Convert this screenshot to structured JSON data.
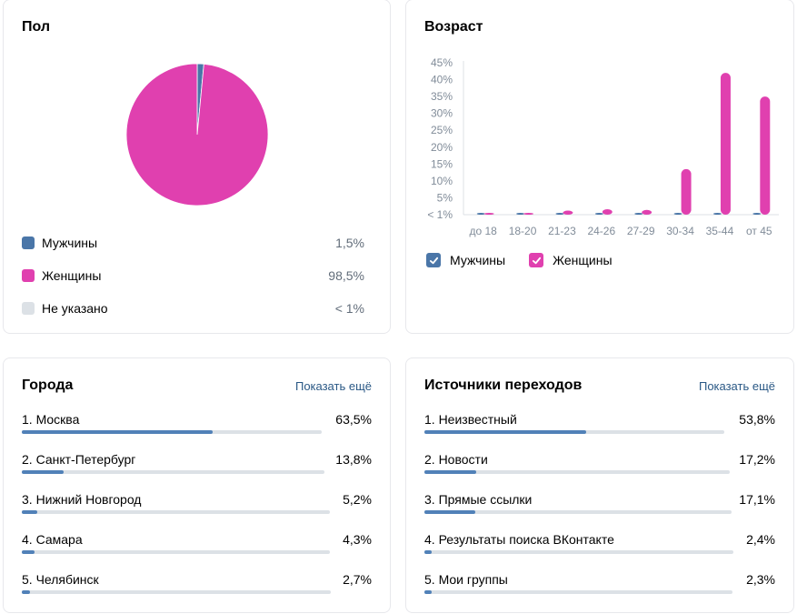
{
  "gender": {
    "title": "Пол",
    "items": [
      {
        "label": "Мужчины",
        "value": "1,5%",
        "fraction": 0.015,
        "color": "#4a76a8"
      },
      {
        "label": "Женщины",
        "value": "98,5%",
        "fraction": 0.985,
        "color": "#e040af"
      },
      {
        "label": "Не указано",
        "value": "< 1%",
        "fraction": 0,
        "color": "#dce1e6"
      }
    ]
  },
  "age": {
    "title": "Возраст",
    "legend": [
      {
        "label": "Мужчины",
        "color": "#4a76a8"
      },
      {
        "label": "Женщины",
        "color": "#e040af"
      }
    ],
    "chart_data": {
      "type": "bar",
      "categories": [
        "до 18",
        "18-20",
        "21-23",
        "24-26",
        "27-29",
        "30-34",
        "35-44",
        "от 45"
      ],
      "y_ticks": [
        "< 1%",
        "5%",
        "10%",
        "15%",
        "20%",
        "25%",
        "30%",
        "35%",
        "40%",
        "45%"
      ],
      "ylim": [
        0,
        45
      ],
      "series": [
        {
          "name": "Мужчины",
          "color": "#4a76a8",
          "values": [
            0,
            0,
            0,
            0,
            0,
            0,
            0.3,
            0
          ]
        },
        {
          "name": "Женщины",
          "color": "#e040af",
          "values": [
            0,
            0.5,
            1.2,
            1.6,
            1.4,
            13.5,
            42,
            35
          ]
        }
      ]
    }
  },
  "cities": {
    "title": "Города",
    "show_more": "Показать ещё",
    "items": [
      {
        "label": "1. Москва",
        "value": "63,5%",
        "fraction": 0.635
      },
      {
        "label": "2. Санкт-Петербург",
        "value": "13,8%",
        "fraction": 0.138
      },
      {
        "label": "3. Нижний Новгород",
        "value": "5,2%",
        "fraction": 0.052
      },
      {
        "label": "4. Самара",
        "value": "4,3%",
        "fraction": 0.043
      },
      {
        "label": "5. Челябинск",
        "value": "2,7%",
        "fraction": 0.027
      }
    ]
  },
  "sources": {
    "title": "Источники переходов",
    "show_more": "Показать ещё",
    "items": [
      {
        "label": "1. Неизвестный",
        "value": "53,8%",
        "fraction": 0.538
      },
      {
        "label": "2. Новости",
        "value": "17,2%",
        "fraction": 0.172
      },
      {
        "label": "3. Прямые ссылки",
        "value": "17,1%",
        "fraction": 0.171
      },
      {
        "label": "4. Результаты поиска ВКонтакте",
        "value": "2,4%",
        "fraction": 0.024
      },
      {
        "label": "5. Мои группы",
        "value": "2,3%",
        "fraction": 0.023
      }
    ]
  }
}
